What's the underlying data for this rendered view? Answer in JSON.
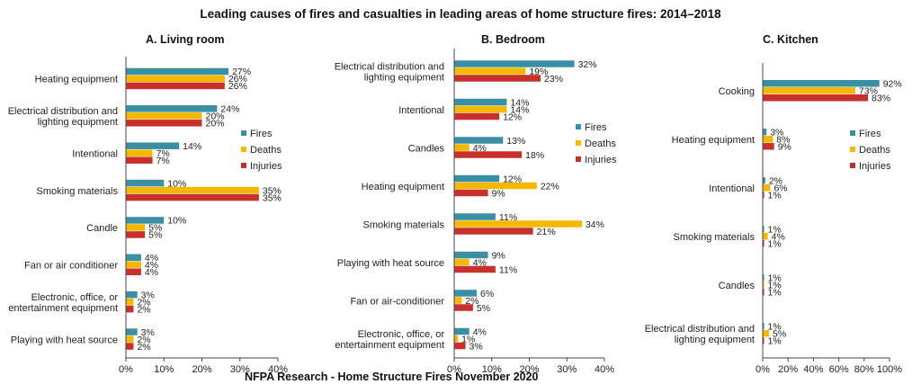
{
  "title": "Leading causes of fires and casualties in leading areas of home structure fires: 2014–2018",
  "footer": "NFPA Research - Home Structure Fires November 2020",
  "colors": {
    "Fires": "#3a8fa4",
    "Deaths": "#f5b800",
    "Injuries": "#c8302d"
  },
  "chart_data": [
    {
      "type": "bar",
      "orientation": "horizontal",
      "title": "A. Living room",
      "categories": [
        "Heating equipment",
        "Electrical distribution and lighting equipment",
        "Intentional",
        "Smoking materials",
        "Candle",
        "Fan or air conditioner",
        "Electronic, office, or entertainment equipment",
        "Playing with heat source"
      ],
      "category_lines": [
        [
          "Heating equipment"
        ],
        [
          "Electrical distribution and",
          "lighting equipment"
        ],
        [
          "Intentional"
        ],
        [
          "Smoking materials"
        ],
        [
          "Candle"
        ],
        [
          "Fan or air conditioner"
        ],
        [
          "Electronic, office, or",
          "entertainment equipment"
        ],
        [
          "Playing with heat source"
        ]
      ],
      "series": [
        {
          "name": "Fires",
          "values": [
            27,
            24,
            14,
            10,
            10,
            4,
            3,
            3
          ]
        },
        {
          "name": "Deaths",
          "values": [
            26,
            20,
            7,
            35,
            5,
            4,
            2,
            2
          ]
        },
        {
          "name": "Injuries",
          "values": [
            26,
            20,
            7,
            35,
            5,
            4,
            2,
            2
          ]
        }
      ],
      "xlim": [
        0,
        40
      ],
      "xticks": [
        0,
        10,
        20,
        30,
        40
      ],
      "tick_labels": [
        "0%",
        "10%",
        "20%",
        "30%",
        "40%"
      ],
      "value_suffix": "%",
      "legend": "right"
    },
    {
      "type": "bar",
      "orientation": "horizontal",
      "title": "B. Bedroom",
      "categories": [
        "Electrical distribution and lighting equipment",
        "Intentional",
        "Candles",
        "Heating equipment",
        "Smoking materials",
        "Playing with heat source",
        "Fan or air-conditioner",
        "Electronic, office, or entertainment equipment"
      ],
      "category_lines": [
        [
          "Electrical distribution and",
          "lighting equipment"
        ],
        [
          "Intentional"
        ],
        [
          "Candles"
        ],
        [
          "Heating equipment"
        ],
        [
          "Smoking materials"
        ],
        [
          "Playing with heat source"
        ],
        [
          "Fan or air-conditioner"
        ],
        [
          "Electronic, office, or",
          "entertainment equipment"
        ]
      ],
      "series": [
        {
          "name": "Fires",
          "values": [
            32,
            14,
            13,
            12,
            11,
            9,
            6,
            4
          ]
        },
        {
          "name": "Deaths",
          "values": [
            19,
            14,
            4,
            22,
            34,
            4,
            2,
            1
          ]
        },
        {
          "name": "Injuries",
          "values": [
            23,
            12,
            18,
            9,
            21,
            11,
            5,
            3
          ]
        }
      ],
      "xlim": [
        0,
        40
      ],
      "xticks": [
        0,
        10,
        20,
        30,
        40
      ],
      "tick_labels": [
        "0%",
        "10%",
        "20%",
        "30%",
        "40%"
      ],
      "value_suffix": "%",
      "legend": "right"
    },
    {
      "type": "bar",
      "orientation": "horizontal",
      "title": "C. Kitchen",
      "categories": [
        "Cooking",
        "Heating equipment",
        "Intentional",
        "Smoking materials",
        "Candles",
        "Electrical distribution and lighting equipment"
      ],
      "category_lines": [
        [
          "Cooking"
        ],
        [
          "Heating equipment"
        ],
        [
          "Intentional"
        ],
        [
          "Smoking materials"
        ],
        [
          "Candles"
        ],
        [
          "Electrical distribution and",
          "lighting equipment"
        ]
      ],
      "series": [
        {
          "name": "Fires",
          "values": [
            92,
            3,
            2,
            1,
            1,
            1
          ]
        },
        {
          "name": "Deaths",
          "values": [
            73,
            8,
            6,
            4,
            1,
            5
          ]
        },
        {
          "name": "Injuries",
          "values": [
            83,
            9,
            1,
            1,
            1,
            1
          ]
        }
      ],
      "xlim": [
        0,
        100
      ],
      "xticks": [
        0,
        20,
        40,
        60,
        80,
        100
      ],
      "tick_labels": [
        "0%",
        "20%",
        "40%",
        "60%",
        "80%",
        "100%"
      ],
      "value_suffix": "%",
      "legend": "right"
    }
  ]
}
